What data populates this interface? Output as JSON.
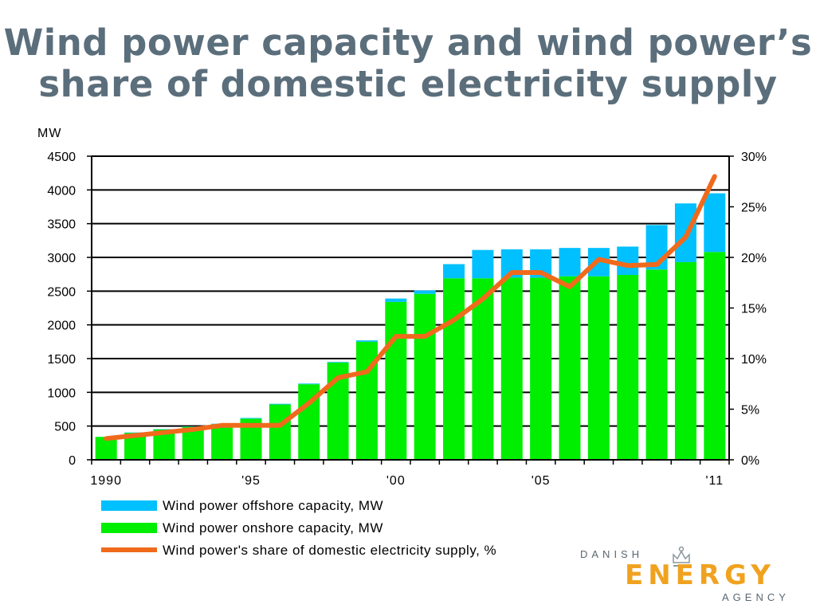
{
  "title": "Wind power capacity and wind power’s share of domestic electricity supply",
  "colors": {
    "title": "#5b6e7b",
    "offshore": "#00c0ff",
    "onshore": "#00ee00",
    "share_line": "#f06a1c",
    "logo_orange": "#f0a21f",
    "logo_grey": "#5a6770"
  },
  "logo": {
    "line1": "DANISH",
    "line2": "ENERGY",
    "line3": "AGENCY",
    "icon": "crown-icon"
  },
  "chart_data": {
    "type": "bar",
    "stacked": true,
    "categories": [
      "1990",
      "1991",
      "1992",
      "1993",
      "1994",
      "1995",
      "1996",
      "1997",
      "1998",
      "1999",
      "2000",
      "2001",
      "2002",
      "2003",
      "2004",
      "2005",
      "2006",
      "2007",
      "2008",
      "2009",
      "2010",
      "2011"
    ],
    "x_tick_labels": [
      "1990",
      "",
      "",
      "",
      "",
      "'95",
      "",
      "",
      "",
      "",
      "'00",
      "",
      "",
      "",
      "",
      "'05",
      "",
      "",
      "",
      "",
      "",
      "'11"
    ],
    "left_axis": {
      "label": "MW",
      "ylim": [
        0,
        4500
      ],
      "ticks": [
        0,
        500,
        1000,
        1500,
        2000,
        2500,
        3000,
        3500,
        4000,
        4500
      ]
    },
    "right_axis": {
      "ylim": [
        0,
        30
      ],
      "ticks": [
        "0%",
        "5%",
        "10%",
        "15%",
        "20%",
        "25%",
        "30%"
      ]
    },
    "series": [
      {
        "name": "Wind power offshore capacity, MW",
        "kind": "bar",
        "axis": "left",
        "values": [
          0,
          5,
          5,
          5,
          5,
          10,
          10,
          10,
          10,
          20,
          50,
          50,
          210,
          420,
          420,
          420,
          420,
          420,
          420,
          660,
          870,
          870
        ]
      },
      {
        "name": "Wind power onshore capacity, MW",
        "kind": "bar",
        "axis": "left",
        "values": [
          340,
          400,
          450,
          490,
          530,
          610,
          820,
          1120,
          1440,
          1750,
          2340,
          2460,
          2690,
          2690,
          2700,
          2700,
          2720,
          2720,
          2740,
          2820,
          2930,
          3080
        ]
      },
      {
        "name": "Wind power's share of domestic electricity supply, %",
        "kind": "line",
        "axis": "right",
        "values": [
          2.1,
          2.4,
          2.7,
          3.0,
          3.4,
          3.4,
          3.4,
          5.6,
          8.1,
          8.7,
          12.2,
          12.2,
          13.8,
          15.9,
          18.5,
          18.5,
          17.1,
          19.8,
          19.2,
          19.3,
          22.0,
          28.0
        ]
      }
    ],
    "grid": "horizontal",
    "legend": "bottom"
  }
}
